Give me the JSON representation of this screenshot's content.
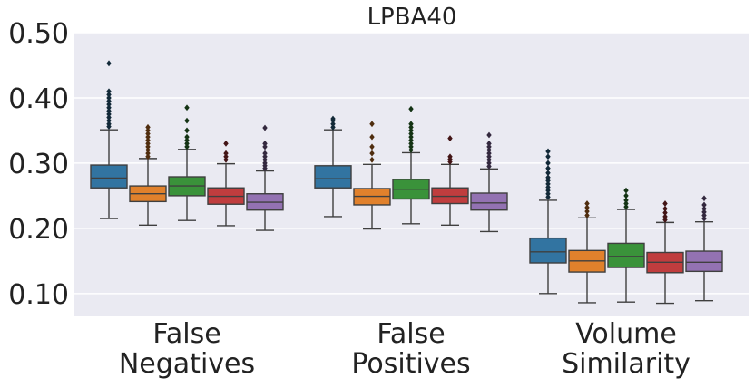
{
  "chart_data": {
    "type": "boxplot",
    "title": "LPBA40",
    "xlabel": "",
    "ylabel": "",
    "ylim": [
      0.065,
      0.5
    ],
    "yticks": [
      0.1,
      0.2,
      0.3,
      0.4,
      0.5
    ],
    "ytick_labels": [
      "0.10",
      "0.20",
      "0.30",
      "0.40",
      "0.50"
    ],
    "grid": true,
    "legend": "none",
    "categories": [
      {
        "line1": "False",
        "line2": "Negatives"
      },
      {
        "line1": "False",
        "line2": "Positives"
      },
      {
        "line1": "Volume",
        "line2": "Similarity"
      }
    ],
    "series_colors": [
      "#3274a1",
      "#e1812c",
      "#3a923a",
      "#c03d3e",
      "#9372b2"
    ],
    "groups": [
      {
        "boxes": [
          {
            "whislo": 0.215,
            "q1": 0.262,
            "med": 0.277,
            "q3": 0.297,
            "whishi": 0.351,
            "fliers": [
              0.356,
              0.36,
              0.365,
              0.37,
              0.375,
              0.38,
              0.385,
              0.39,
              0.395,
              0.4,
              0.405,
              0.41,
              0.453
            ]
          },
          {
            "whislo": 0.205,
            "q1": 0.241,
            "med": 0.253,
            "q3": 0.265,
            "whishi": 0.307,
            "fliers": [
              0.31,
              0.315,
              0.32,
              0.325,
              0.33,
              0.335,
              0.34,
              0.345,
              0.35,
              0.355
            ]
          },
          {
            "whislo": 0.212,
            "q1": 0.25,
            "med": 0.265,
            "q3": 0.279,
            "whishi": 0.321,
            "fliers": [
              0.325,
              0.33,
              0.335,
              0.34,
              0.35,
              0.365,
              0.385
            ]
          },
          {
            "whislo": 0.204,
            "q1": 0.237,
            "med": 0.249,
            "q3": 0.262,
            "whishi": 0.299,
            "fliers": [
              0.305,
              0.31,
              0.315,
              0.33
            ]
          },
          {
            "whislo": 0.197,
            "q1": 0.228,
            "med": 0.24,
            "q3": 0.253,
            "whishi": 0.288,
            "fliers": [
              0.292,
              0.296,
              0.3,
              0.305,
              0.31,
              0.315,
              0.325,
              0.33,
              0.354
            ]
          }
        ]
      },
      {
        "boxes": [
          {
            "whislo": 0.218,
            "q1": 0.262,
            "med": 0.276,
            "q3": 0.296,
            "whishi": 0.351,
            "fliers": [
              0.355,
              0.36,
              0.365,
              0.368
            ]
          },
          {
            "whislo": 0.199,
            "q1": 0.236,
            "med": 0.249,
            "q3": 0.261,
            "whishi": 0.298,
            "fliers": [
              0.305,
              0.315,
              0.325,
              0.34,
              0.36
            ]
          },
          {
            "whislo": 0.207,
            "q1": 0.245,
            "med": 0.26,
            "q3": 0.275,
            "whishi": 0.316,
            "fliers": [
              0.32,
              0.325,
              0.33,
              0.335,
              0.34,
              0.345,
              0.35,
              0.355,
              0.36,
              0.383
            ]
          },
          {
            "whislo": 0.205,
            "q1": 0.238,
            "med": 0.249,
            "q3": 0.262,
            "whishi": 0.298,
            "fliers": [
              0.302,
              0.306,
              0.31,
              0.338
            ]
          },
          {
            "whislo": 0.195,
            "q1": 0.228,
            "med": 0.239,
            "q3": 0.254,
            "whishi": 0.291,
            "fliers": [
              0.295,
              0.3,
              0.305,
              0.31,
              0.315,
              0.32,
              0.325,
              0.33,
              0.343
            ]
          }
        ]
      },
      {
        "boxes": [
          {
            "whislo": 0.1,
            "q1": 0.147,
            "med": 0.164,
            "q3": 0.185,
            "whishi": 0.243,
            "fliers": [
              0.248,
              0.253,
              0.258,
              0.263,
              0.268,
              0.273,
              0.278,
              0.285,
              0.292,
              0.3,
              0.31,
              0.318
            ]
          },
          {
            "whislo": 0.086,
            "q1": 0.133,
            "med": 0.15,
            "q3": 0.166,
            "whishi": 0.216,
            "fliers": [
              0.22,
              0.226,
              0.232,
              0.238
            ]
          },
          {
            "whislo": 0.087,
            "q1": 0.14,
            "med": 0.157,
            "q3": 0.177,
            "whishi": 0.229,
            "fliers": [
              0.233,
              0.238,
              0.243,
              0.25,
              0.258
            ]
          },
          {
            "whislo": 0.085,
            "q1": 0.132,
            "med": 0.148,
            "q3": 0.163,
            "whishi": 0.209,
            "fliers": [
              0.213,
              0.218,
              0.224,
              0.23,
              0.238
            ]
          },
          {
            "whislo": 0.089,
            "q1": 0.134,
            "med": 0.148,
            "q3": 0.165,
            "whishi": 0.21,
            "fliers": [
              0.215,
              0.22,
              0.225,
              0.23,
              0.236,
              0.246
            ]
          }
        ]
      }
    ]
  }
}
